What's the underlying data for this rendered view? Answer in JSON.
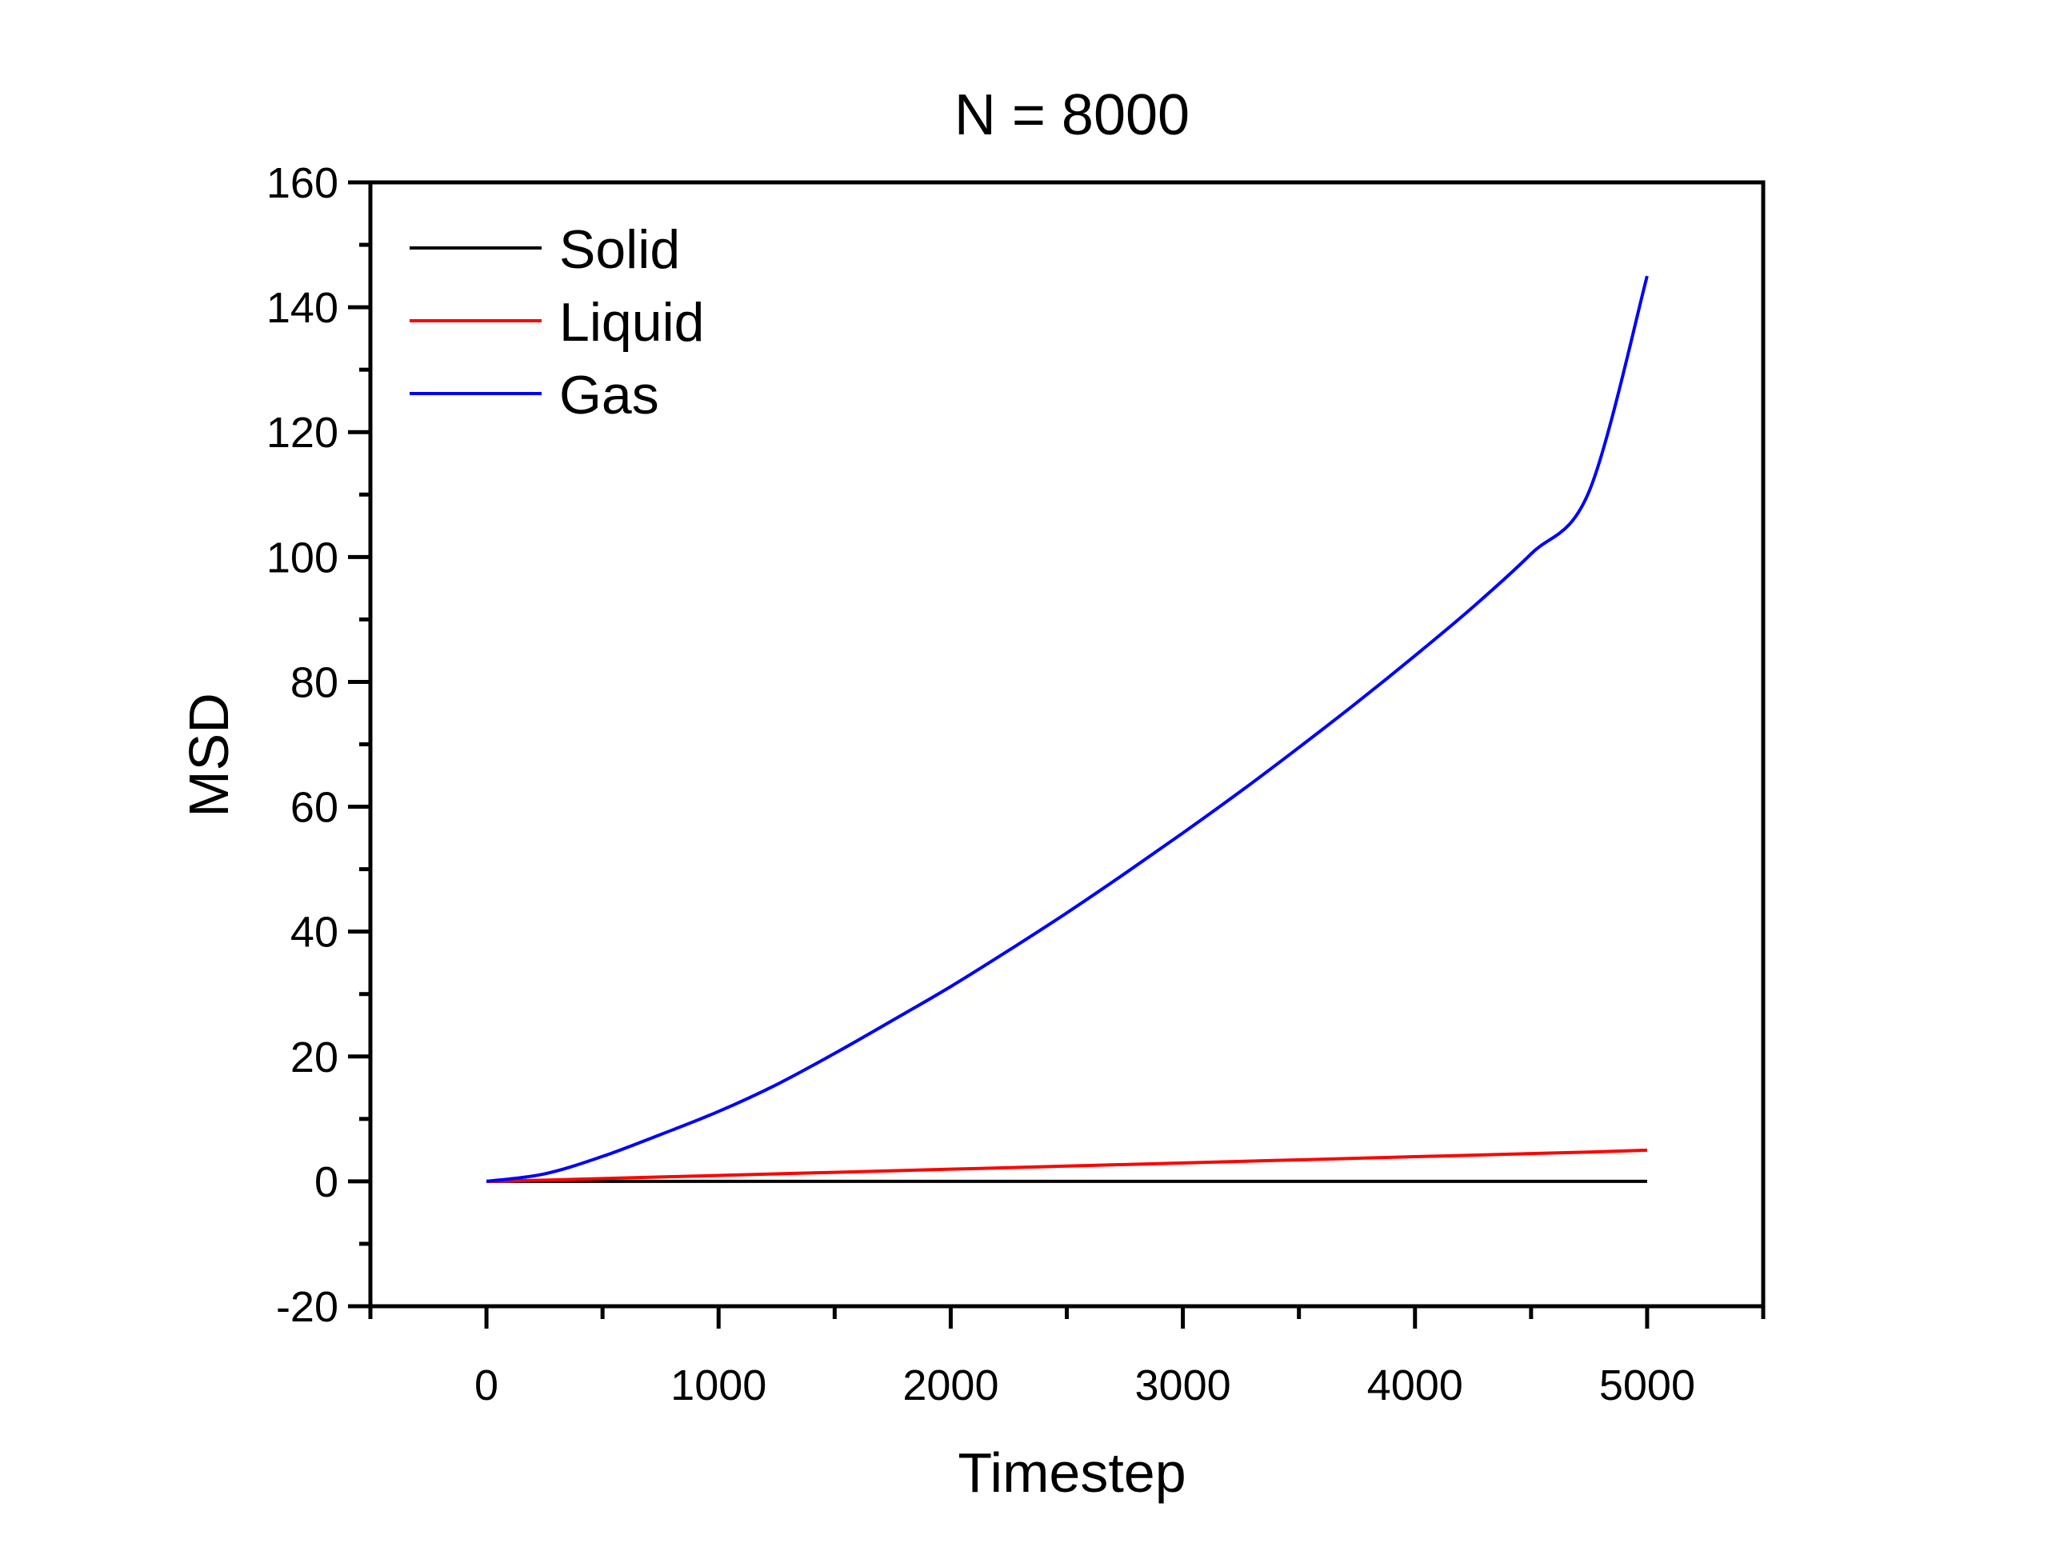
{
  "chart_data": {
    "type": "line",
    "title": "N = 8000",
    "xlabel": "Timestep",
    "ylabel": "MSD",
    "xlim": [
      -500,
      5500
    ],
    "ylim": [
      -20,
      160
    ],
    "xticks": [
      0,
      1000,
      2000,
      3000,
      4000,
      5000
    ],
    "yticks": [
      -20,
      0,
      20,
      40,
      60,
      80,
      100,
      120,
      140,
      160
    ],
    "grid": false,
    "legend_position": "top-left",
    "x": [
      0,
      250,
      500,
      750,
      1000,
      1250,
      1500,
      1750,
      2000,
      2250,
      2500,
      2750,
      3000,
      3250,
      3500,
      3750,
      4000,
      4250,
      4500,
      4750,
      5000
    ],
    "series": [
      {
        "name": "Solid",
        "color": "#000000",
        "values": [
          0,
          0,
          0,
          0,
          0,
          0,
          0,
          0,
          0,
          0,
          0,
          0,
          0,
          0,
          0,
          0,
          0,
          0,
          0,
          0,
          0
        ]
      },
      {
        "name": "Liquid",
        "color": "#ff0000",
        "values": [
          0,
          0.2,
          0.45,
          0.7,
          0.95,
          1.2,
          1.45,
          1.7,
          1.95,
          2.2,
          2.45,
          2.7,
          2.95,
          3.2,
          3.45,
          3.7,
          3.95,
          4.2,
          4.45,
          4.7,
          5.0
        ]
      },
      {
        "name": "Gas",
        "color": "#0000ff",
        "values": [
          0,
          1.2,
          4.0,
          7.5,
          11.2,
          15.5,
          20.5,
          25.8,
          31.2,
          37.0,
          43.0,
          49.3,
          55.8,
          62.5,
          69.5,
          76.7,
          84.2,
          92.0,
          100.5,
          110.5,
          145.0
        ]
      }
    ]
  }
}
